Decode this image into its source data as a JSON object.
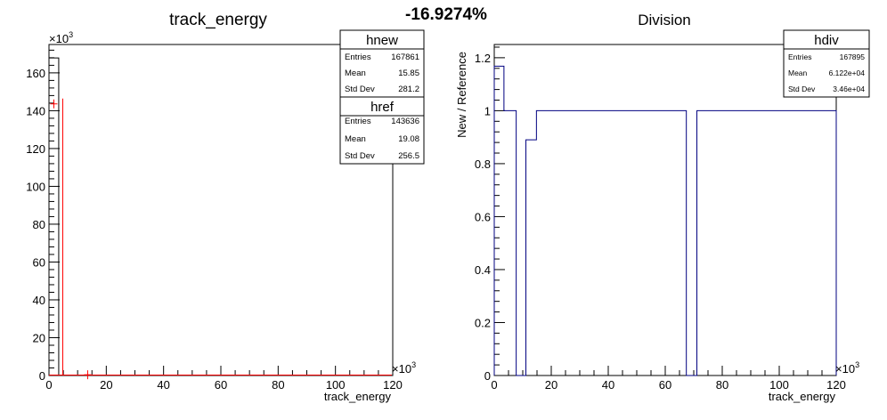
{
  "header": {
    "ratio_label": "-16.9274%"
  },
  "chart_data": [
    {
      "type": "histogram",
      "title": "track_energy",
      "xlabel": "track_energy",
      "ylabel": "",
      "x_exponent_label": "×10",
      "x_exponent_power": "3",
      "y_exponent_label": "×10",
      "y_exponent_power": "3",
      "xlim": [
        0,
        120
      ],
      "ylim": [
        0,
        175
      ],
      "x_ticks": [
        "0",
        "20",
        "40",
        "60",
        "80",
        "100",
        "120"
      ],
      "y_ticks": [
        "0",
        "20",
        "40",
        "60",
        "80",
        "100",
        "120",
        "140",
        "160"
      ],
      "series": [
        {
          "name": "hnew",
          "color": "#000000",
          "bins": [
            {
              "x0": 0,
              "x1": 3.4,
              "y": 167.9
            },
            {
              "x0": 3.4,
              "x1": 120,
              "y": 0
            }
          ]
        },
        {
          "name": "href",
          "color": "#ff0000",
          "points": [
            {
              "x": 1.7,
              "y": 143.6
            },
            {
              "x": 13.5,
              "y": 0.4
            }
          ]
        }
      ],
      "stats": [
        {
          "name": "hnew",
          "rows": [
            [
              "Entries",
              "167861"
            ],
            [
              "Mean",
              "15.85"
            ],
            [
              "Std Dev",
              "281.2"
            ]
          ]
        },
        {
          "name": "href",
          "rows": [
            [
              "Entries",
              "143636"
            ],
            [
              "Mean",
              "19.08"
            ],
            [
              "Std Dev",
              "256.5"
            ]
          ]
        }
      ]
    },
    {
      "type": "histogram",
      "title": "Division",
      "xlabel": "track_energy",
      "ylabel": "New / Reference",
      "x_exponent_label": "×10",
      "x_exponent_power": "3",
      "xlim": [
        0,
        120
      ],
      "ylim": [
        0,
        1.25
      ],
      "x_ticks": [
        "0",
        "20",
        "40",
        "60",
        "80",
        "100",
        "120"
      ],
      "y_ticks": [
        "0",
        "0.2",
        "0.4",
        "0.6",
        "0.8",
        "1",
        "1.2"
      ],
      "series": [
        {
          "name": "hdiv",
          "color": "#000080",
          "bins": [
            {
              "x0": 0,
              "x1": 3.4,
              "y": 1.168
            },
            {
              "x0": 3.4,
              "x1": 7.7,
              "y": 1.0
            },
            {
              "x0": 7.7,
              "x1": 11.1,
              "y": 0
            },
            {
              "x0": 11.1,
              "x1": 14.8,
              "y": 0.89
            },
            {
              "x0": 14.8,
              "x1": 67.4,
              "y": 1.0
            },
            {
              "x0": 67.4,
              "x1": 71.1,
              "y": 0
            },
            {
              "x0": 71.1,
              "x1": 120,
              "y": 1.0
            }
          ]
        }
      ],
      "stats": [
        {
          "name": "hdiv",
          "rows": [
            [
              "Entries",
              "167895"
            ],
            [
              "Mean",
              "6.122e+04"
            ],
            [
              "Std Dev",
              "3.46e+04"
            ]
          ]
        }
      ]
    }
  ]
}
